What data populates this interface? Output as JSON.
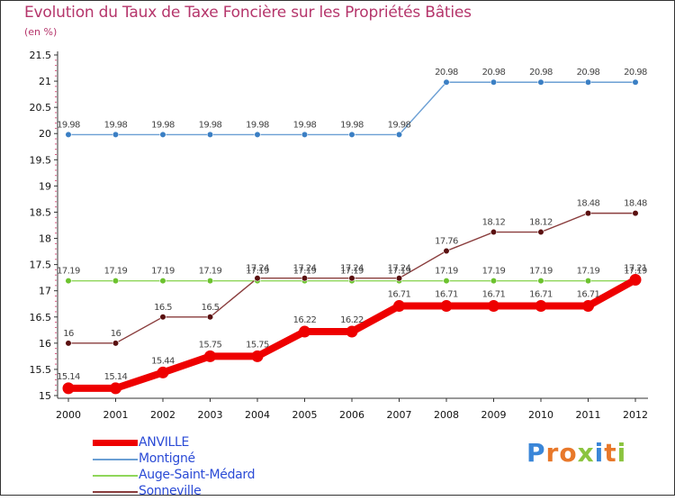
{
  "header": {
    "title": "Evolution du Taux de Taxe Foncière sur les Propriétés Bâties",
    "unit": "(en %)"
  },
  "brand": {
    "name": "Proxiti",
    "letters": [
      "P",
      "r",
      "o",
      "x",
      "i",
      "t",
      "i"
    ],
    "colors": [
      "#3a86d8",
      "#e8782a",
      "#e8782a",
      "#8bc43f",
      "#3a86d8",
      "#e8782a",
      "#8bc43f"
    ]
  },
  "chart_data": {
    "type": "line",
    "title": "Evolution du Taux de Taxe Foncière sur les Propriétés Bâties",
    "ylabel": "(en %)",
    "xlabel": "",
    "categories": [
      "2000",
      "2001",
      "2002",
      "2003",
      "2004",
      "2005",
      "2006",
      "2007",
      "2008",
      "2009",
      "2010",
      "2011",
      "2012"
    ],
    "ylim": [
      15,
      21.5
    ],
    "yticks": [
      "15",
      "15.5",
      "16",
      "16.5",
      "17",
      "17.5",
      "18",
      "18.5",
      "19",
      "19.5",
      "20",
      "20.5",
      "21",
      "21.5"
    ],
    "grid": false,
    "legend_position": "bottom-left",
    "series": [
      {
        "name": "Montigné",
        "color": "#6b9fd4",
        "marker": "#3b7fc4",
        "values": [
          19.98,
          19.98,
          19.98,
          19.98,
          19.98,
          19.98,
          19.98,
          19.98,
          20.98,
          20.98,
          20.98,
          20.98,
          20.98
        ],
        "labels": [
          "19.98",
          "19.98",
          "19.98",
          "19.98",
          "19.98",
          "19.98",
          "19.98",
          "19.98",
          "20.98",
          "20.98",
          "20.98",
          "20.98",
          "20.98"
        ]
      },
      {
        "name": "Auge-Saint-Médard",
        "color": "#8fd65a",
        "marker": "#6cc22e",
        "values": [
          17.19,
          17.19,
          17.19,
          17.19,
          17.19,
          17.19,
          17.19,
          17.19,
          17.19,
          17.19,
          17.19,
          17.19,
          17.19
        ],
        "labels": [
          "17.19",
          "17.19",
          "17.19",
          "17.19",
          "17.19",
          "17.19",
          "17.19",
          "17.19",
          "17.19",
          "17.19",
          "17.19",
          "17.19",
          "17.19"
        ]
      },
      {
        "name": "Sonneville",
        "color": "#8a3d3d",
        "marker": "#5a1010",
        "values": [
          16,
          16,
          16.5,
          16.5,
          17.24,
          17.24,
          17.24,
          17.24,
          17.76,
          18.12,
          18.12,
          18.48,
          18.48
        ],
        "labels": [
          "16",
          "16",
          "16.5",
          "16.5",
          "17.24",
          "17.24",
          "17.24",
          "17.24",
          "17.76",
          "18.12",
          "18.12",
          "18.48",
          "18.48"
        ]
      },
      {
        "name": "ANVILLE",
        "color": "#ee0000",
        "marker": "#ee0000",
        "values": [
          15.14,
          15.14,
          15.44,
          15.75,
          15.75,
          16.22,
          16.22,
          16.71,
          16.71,
          16.71,
          16.71,
          16.71,
          17.21
        ],
        "labels": [
          "15.14",
          "15.14",
          "15.44",
          "15.75",
          "15.75",
          "16.22",
          "16.22",
          "16.71",
          "16.71",
          "16.71",
          "16.71",
          "16.71",
          "17.21"
        ]
      }
    ],
    "legend": [
      "ANVILLE",
      "Montigné",
      "Auge-Saint-Médard",
      "Sonneville"
    ]
  }
}
